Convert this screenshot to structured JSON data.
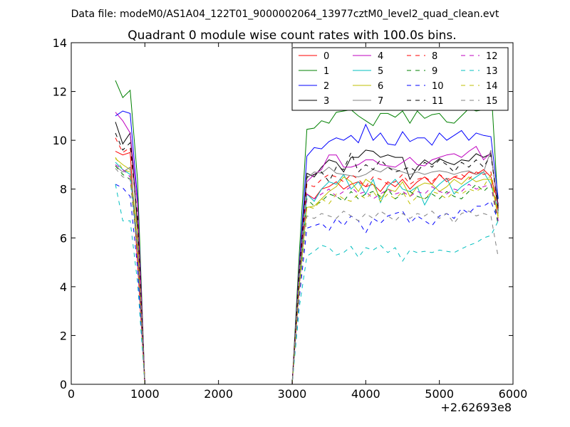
{
  "chart_data": {
    "type": "line",
    "suptitle": "Data file: modeM0/AS1A04_122T01_9000002064_13977cztM0_level2_quad_clean.evt",
    "title": "Quadrant 0 module wise count rates with 100.0s bins.",
    "xlabel": "",
    "ylabel": "",
    "x_offset_label": "+2.62693e8",
    "xlim": [
      0,
      6000
    ],
    "ylim": [
      0,
      14
    ],
    "xticks": [
      0,
      1000,
      2000,
      3000,
      4000,
      5000,
      6000
    ],
    "yticks": [
      0,
      2,
      4,
      6,
      8,
      10,
      12,
      14
    ],
    "grid": false,
    "legend_position": "upper-right",
    "legend_columns": 4,
    "x": [
      600,
      700,
      800,
      900,
      1000,
      1100,
      1200,
      1300,
      1400,
      1500,
      1600,
      1700,
      1800,
      1900,
      2000,
      2100,
      2200,
      2300,
      2400,
      2500,
      2600,
      2700,
      2800,
      2900,
      3000,
      3100,
      3200,
      3300,
      3400,
      3500,
      3600,
      3700,
      3800,
      3900,
      4000,
      4100,
      4200,
      4300,
      4400,
      4500,
      4600,
      4700,
      4800,
      4900,
      5000,
      5100,
      5200,
      5300,
      5400,
      5500,
      5600,
      5700,
      5800
    ],
    "series": [
      {
        "name": "0",
        "color": "#ff0000",
        "dash": "solid",
        "values": [
          9.55,
          9.4,
          9.5,
          5.0,
          0,
          0,
          0,
          0,
          0,
          0,
          0,
          0,
          0,
          0,
          0,
          0,
          0,
          0,
          0,
          0,
          0,
          0,
          0,
          0,
          0,
          4.5,
          7.8,
          7.6,
          8.0,
          8.1,
          8.3,
          8.0,
          8.2,
          8.3,
          8.1,
          8.2,
          7.9,
          8.3,
          8.1,
          8.4,
          8.0,
          8.3,
          8.5,
          8.2,
          8.6,
          8.3,
          8.5,
          8.4,
          8.7,
          8.6,
          8.8,
          8.5,
          7.4
        ]
      },
      {
        "name": "1",
        "color": "#008000",
        "dash": "solid",
        "values": [
          12.45,
          11.75,
          12.05,
          8.4,
          0,
          0,
          0,
          0,
          0,
          0,
          0,
          0,
          0,
          0,
          0,
          0,
          0,
          0,
          0,
          0,
          0,
          0,
          0,
          0,
          0,
          5.5,
          10.45,
          10.5,
          10.8,
          10.7,
          11.15,
          11.2,
          11.25,
          11.0,
          10.8,
          10.6,
          11.1,
          11.1,
          10.95,
          11.2,
          10.7,
          11.2,
          10.9,
          11.05,
          11.1,
          10.75,
          10.7,
          11.0,
          11.3,
          11.2,
          11.25,
          12.35,
          7.1
        ]
      },
      {
        "name": "2",
        "color": "#0000ff",
        "dash": "solid",
        "values": [
          11.0,
          11.2,
          11.1,
          7.6,
          0,
          0,
          0,
          0,
          0,
          0,
          0,
          0,
          0,
          0,
          0,
          0,
          0,
          0,
          0,
          0,
          0,
          0,
          0,
          0,
          0,
          5.0,
          9.35,
          9.7,
          9.65,
          9.95,
          10.1,
          10.0,
          10.2,
          9.9,
          10.65,
          10.0,
          10.3,
          9.85,
          9.8,
          10.35,
          9.95,
          10.1,
          10.1,
          9.8,
          10.3,
          10.0,
          10.2,
          10.4,
          10.0,
          10.3,
          10.2,
          10.15,
          7.6
        ]
      },
      {
        "name": "3",
        "color": "#000000",
        "dash": "solid",
        "values": [
          10.75,
          9.85,
          10.3,
          6.5,
          0,
          0,
          0,
          0,
          0,
          0,
          0,
          0,
          0,
          0,
          0,
          0,
          0,
          0,
          0,
          0,
          0,
          0,
          0,
          0,
          0,
          4.8,
          8.65,
          8.5,
          8.9,
          9.2,
          9.1,
          8.7,
          9.3,
          9.3,
          9.6,
          9.55,
          9.3,
          9.4,
          9.3,
          9.3,
          8.4,
          8.9,
          9.2,
          9.0,
          9.25,
          9.1,
          9.0,
          9.2,
          9.15,
          9.45,
          9.3,
          9.45,
          7.3
        ]
      },
      {
        "name": "4",
        "color": "#bf00bf",
        "dash": "solid",
        "values": [
          11.15,
          10.8,
          10.3,
          7.4,
          0,
          0,
          0,
          0,
          0,
          0,
          0,
          0,
          0,
          0,
          0,
          0,
          0,
          0,
          0,
          0,
          0,
          0,
          0,
          0,
          0,
          4.9,
          8.3,
          8.6,
          8.8,
          9.4,
          9.4,
          8.9,
          8.9,
          9.0,
          9.2,
          9.2,
          9.0,
          8.95,
          8.9,
          9.1,
          9.3,
          9.0,
          8.95,
          9.2,
          9.3,
          9.4,
          9.45,
          9.3,
          9.55,
          9.75,
          9.2,
          9.5,
          7.2
        ]
      },
      {
        "name": "5",
        "color": "#00bfbf",
        "dash": "solid",
        "values": [
          9.1,
          8.8,
          8.6,
          5.6,
          0,
          0,
          0,
          0,
          0,
          0,
          0,
          0,
          0,
          0,
          0,
          0,
          0,
          0,
          0,
          0,
          0,
          0,
          0,
          0,
          0,
          4.2,
          7.8,
          7.5,
          8.0,
          8.3,
          8.2,
          8.6,
          8.0,
          8.3,
          7.8,
          8.4,
          7.45,
          8.1,
          8.4,
          8.0,
          7.9,
          8.1,
          7.35,
          7.9,
          8.2,
          8.45,
          7.8,
          8.1,
          8.3,
          8.5,
          8.7,
          8.2,
          7.1
        ]
      },
      {
        "name": "6",
        "color": "#bfbf00",
        "dash": "solid",
        "values": [
          9.25,
          9.0,
          8.8,
          6.3,
          0,
          0,
          0,
          0,
          0,
          0,
          0,
          0,
          0,
          0,
          0,
          0,
          0,
          0,
          0,
          0,
          0,
          0,
          0,
          0,
          0,
          4.1,
          7.25,
          7.3,
          7.6,
          7.9,
          8.1,
          8.5,
          8.3,
          7.9,
          8.4,
          8.2,
          7.6,
          8.0,
          7.9,
          8.3,
          7.7,
          8.1,
          8.25,
          8.2,
          7.9,
          8.1,
          8.4,
          8.2,
          8.5,
          8.3,
          8.4,
          8.4,
          6.8
        ]
      },
      {
        "name": "7",
        "color": "#808080",
        "dash": "solid",
        "values": [
          8.95,
          8.7,
          8.9,
          5.8,
          0,
          0,
          0,
          0,
          0,
          0,
          0,
          0,
          0,
          0,
          0,
          0,
          0,
          0,
          0,
          0,
          0,
          0,
          0,
          0,
          0,
          4.6,
          8.45,
          8.7,
          8.65,
          8.9,
          8.65,
          8.6,
          8.55,
          8.5,
          8.6,
          8.8,
          8.7,
          8.9,
          8.8,
          8.7,
          8.6,
          8.7,
          8.6,
          8.7,
          8.75,
          8.7,
          8.6,
          8.7,
          8.75,
          8.6,
          8.7,
          9.6,
          7.0
        ]
      },
      {
        "name": "8",
        "color": "#ff0000",
        "dash": "dashed",
        "values": [
          10.1,
          9.5,
          9.7,
          6.9,
          0,
          0,
          0,
          0,
          0,
          0,
          0,
          0,
          0,
          0,
          0,
          0,
          0,
          0,
          0,
          0,
          0,
          0,
          0,
          0,
          0,
          4.7,
          8.2,
          8.1,
          8.4,
          8.6,
          8.5,
          8.3,
          8.6,
          8.4,
          8.1,
          8.5,
          8.4,
          8.2,
          8.3,
          8.6,
          8.2,
          8.4,
          8.5,
          8.3,
          8.6,
          8.4,
          8.5,
          8.6,
          8.4,
          8.7,
          8.6,
          8.7,
          7.0
        ]
      },
      {
        "name": "9",
        "color": "#008000",
        "dash": "dashed",
        "values": [
          8.95,
          8.6,
          8.4,
          5.5,
          0,
          0,
          0,
          0,
          0,
          0,
          0,
          0,
          0,
          0,
          0,
          0,
          0,
          0,
          0,
          0,
          0,
          0,
          0,
          0,
          0,
          3.9,
          7.6,
          7.3,
          7.5,
          7.8,
          7.7,
          7.5,
          7.9,
          7.6,
          7.8,
          7.9,
          7.7,
          8.0,
          7.6,
          7.8,
          7.9,
          7.7,
          7.6,
          7.8,
          7.6,
          7.9,
          7.7,
          7.6,
          7.9,
          8.2,
          7.9,
          8.2,
          6.5
        ]
      },
      {
        "name": "10",
        "color": "#0000ff",
        "dash": "dashed",
        "values": [
          8.2,
          8.05,
          7.7,
          4.8,
          0,
          0,
          0,
          0,
          0,
          0,
          0,
          0,
          0,
          0,
          0,
          0,
          0,
          0,
          0,
          0,
          0,
          0,
          0,
          0,
          0,
          3.6,
          6.4,
          6.5,
          6.6,
          6.3,
          6.8,
          6.5,
          6.9,
          6.7,
          6.2,
          6.8,
          6.6,
          6.9,
          7.0,
          7.1,
          6.6,
          6.9,
          6.7,
          6.5,
          6.9,
          7.0,
          6.8,
          7.2,
          7.0,
          7.3,
          7.3,
          7.5,
          6.7
        ]
      },
      {
        "name": "11",
        "color": "#000000",
        "dash": "dashed",
        "values": [
          10.3,
          9.6,
          9.9,
          6.8,
          0,
          0,
          0,
          0,
          0,
          0,
          0,
          0,
          0,
          0,
          0,
          0,
          0,
          0,
          0,
          0,
          0,
          0,
          0,
          0,
          0,
          4.7,
          8.5,
          8.6,
          8.7,
          8.3,
          8.9,
          8.8,
          9.5,
          8.7,
          9.0,
          8.8,
          9.2,
          8.9,
          8.7,
          8.8,
          8.9,
          8.7,
          9.1,
          8.9,
          9.2,
          9.0,
          8.7,
          9.1,
          8.9,
          9.2,
          8.9,
          9.4,
          7.2
        ]
      },
      {
        "name": "12",
        "color": "#bf00bf",
        "dash": "dashed",
        "values": [
          9.0,
          8.8,
          8.5,
          5.9,
          0,
          0,
          0,
          0,
          0,
          0,
          0,
          0,
          0,
          0,
          0,
          0,
          0,
          0,
          0,
          0,
          0,
          0,
          0,
          0,
          0,
          4.0,
          7.8,
          7.6,
          7.8,
          8.0,
          7.7,
          7.9,
          8.1,
          7.8,
          7.9,
          7.6,
          7.8,
          8.0,
          7.8,
          7.9,
          7.7,
          7.9,
          7.8,
          8.1,
          7.9,
          7.8,
          8.0,
          7.9,
          8.2,
          8.0,
          8.1,
          8.2,
          6.7
        ]
      },
      {
        "name": "13",
        "color": "#00bfbf",
        "dash": "dashed",
        "values": [
          8.2,
          6.7,
          6.7,
          4.2,
          0,
          0,
          0,
          0,
          0,
          0,
          0,
          0,
          0,
          0,
          0,
          0,
          0,
          0,
          0,
          0,
          0,
          0,
          0,
          0,
          0,
          3.2,
          5.25,
          5.45,
          5.7,
          5.6,
          5.3,
          5.4,
          5.65,
          5.2,
          5.6,
          5.5,
          5.7,
          5.4,
          5.6,
          5.05,
          5.5,
          5.4,
          5.45,
          5.4,
          5.5,
          5.45,
          5.4,
          5.55,
          5.7,
          5.8,
          6.0,
          6.1,
          6.7
        ]
      },
      {
        "name": "14",
        "color": "#bfbf00",
        "dash": "dashed",
        "values": [
          9.3,
          8.8,
          8.7,
          5.7,
          0,
          0,
          0,
          0,
          0,
          0,
          0,
          0,
          0,
          0,
          0,
          0,
          0,
          0,
          0,
          0,
          0,
          0,
          0,
          0,
          0,
          4.1,
          7.3,
          7.2,
          7.6,
          7.4,
          7.8,
          7.6,
          7.5,
          7.8,
          7.6,
          7.9,
          7.5,
          7.8,
          7.6,
          7.9,
          7.4,
          7.7,
          7.6,
          7.9,
          7.8,
          7.6,
          7.9,
          7.8,
          8.0,
          7.9,
          8.1,
          8.6,
          6.9
        ]
      },
      {
        "name": "15",
        "color": "#808080",
        "dash": "dashed",
        "values": [
          8.85,
          8.5,
          8.4,
          5.4,
          0,
          0,
          0,
          0,
          0,
          0,
          0,
          0,
          0,
          0,
          0,
          0,
          0,
          0,
          0,
          0,
          0,
          0,
          0,
          0,
          0,
          3.8,
          6.9,
          6.8,
          7.0,
          6.9,
          6.8,
          7.1,
          6.9,
          6.7,
          7.0,
          6.8,
          7.1,
          6.9,
          6.7,
          7.0,
          6.8,
          7.0,
          6.9,
          7.1,
          6.8,
          7.0,
          6.6,
          7.0,
          7.1,
          6.9,
          7.0,
          6.9,
          5.2
        ]
      }
    ]
  }
}
